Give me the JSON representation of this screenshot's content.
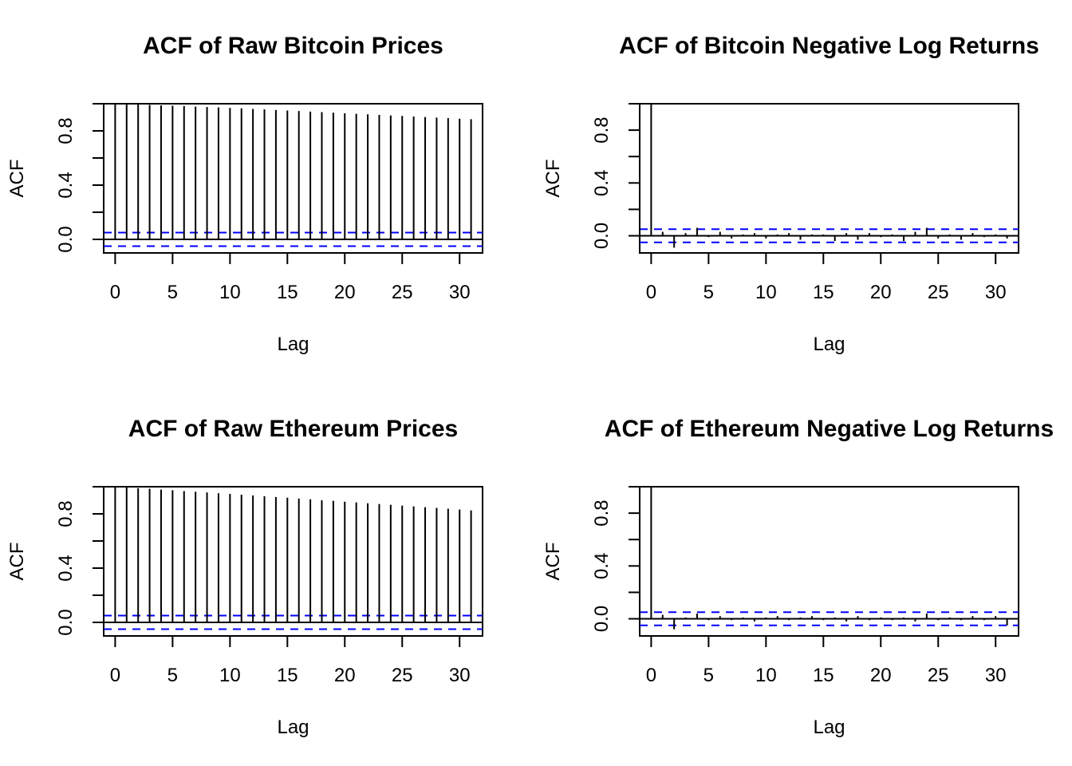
{
  "chart_data": [
    {
      "type": "bar",
      "title": "ACF of Raw Bitcoin Prices",
      "xlabel": "Lag",
      "ylabel": "ACF",
      "xlim": [
        -1,
        32
      ],
      "ylim": [
        -0.1,
        1.0
      ],
      "xticks": [
        "0",
        "5",
        "10",
        "15",
        "20",
        "25",
        "30"
      ],
      "yticks": [
        "0.0",
        "0.4",
        "0.8"
      ],
      "ci": 0.05,
      "grid": false,
      "colors": {
        "bars": "#000000",
        "ci": "#0000ff"
      },
      "x": [
        0,
        1,
        2,
        3,
        4,
        5,
        6,
        7,
        8,
        9,
        10,
        11,
        12,
        13,
        14,
        15,
        16,
        17,
        18,
        19,
        20,
        21,
        22,
        23,
        24,
        25,
        26,
        27,
        28,
        29,
        30,
        31
      ],
      "values": [
        1.0,
        0.997,
        0.994,
        0.991,
        0.988,
        0.985,
        0.982,
        0.979,
        0.976,
        0.973,
        0.969,
        0.966,
        0.962,
        0.958,
        0.954,
        0.95,
        0.946,
        0.942,
        0.938,
        0.934,
        0.93,
        0.926,
        0.922,
        0.918,
        0.914,
        0.91,
        0.906,
        0.902,
        0.898,
        0.894,
        0.89,
        0.886
      ]
    },
    {
      "type": "bar",
      "title": "ACF of Bitcoin Negative Log Returns",
      "xlabel": "Lag",
      "ylabel": "ACF",
      "xlim": [
        -1,
        32
      ],
      "ylim": [
        -0.13,
        1.0
      ],
      "xticks": [
        "0",
        "5",
        "10",
        "15",
        "20",
        "25",
        "30"
      ],
      "yticks": [
        "0.0",
        "0.4",
        "0.8"
      ],
      "ci": 0.05,
      "grid": false,
      "colors": {
        "bars": "#000000",
        "ci": "#0000ff"
      },
      "x": [
        0,
        1,
        2,
        3,
        4,
        5,
        6,
        7,
        8,
        9,
        10,
        11,
        12,
        13,
        14,
        15,
        16,
        17,
        18,
        19,
        20,
        21,
        22,
        23,
        24,
        25,
        26,
        27,
        28,
        29,
        30,
        31
      ],
      "values": [
        1.0,
        0.03,
        -0.09,
        0.02,
        0.06,
        -0.01,
        0.03,
        -0.02,
        0.01,
        0.02,
        -0.02,
        0.01,
        0.02,
        -0.03,
        0.01,
        0.01,
        -0.04,
        0.02,
        -0.03,
        0.02,
        -0.01,
        0.01,
        -0.04,
        0.03,
        0.06,
        -0.02,
        0.01,
        -0.03,
        0.02,
        -0.01,
        0.01,
        -0.02
      ]
    },
    {
      "type": "bar",
      "title": "ACF of Raw Ethereum Prices",
      "xlabel": "Lag",
      "ylabel": "ACF",
      "xlim": [
        -1,
        32
      ],
      "ylim": [
        -0.1,
        1.0
      ],
      "xticks": [
        "0",
        "5",
        "10",
        "15",
        "20",
        "25",
        "30"
      ],
      "yticks": [
        "0.0",
        "0.4",
        "0.8"
      ],
      "ci": 0.05,
      "grid": false,
      "colors": {
        "bars": "#000000",
        "ci": "#0000ff"
      },
      "x": [
        0,
        1,
        2,
        3,
        4,
        5,
        6,
        7,
        8,
        9,
        10,
        11,
        12,
        13,
        14,
        15,
        16,
        17,
        18,
        19,
        20,
        21,
        22,
        23,
        24,
        25,
        26,
        27,
        28,
        29,
        30,
        31
      ],
      "values": [
        1.0,
        0.995,
        0.99,
        0.985,
        0.979,
        0.974,
        0.968,
        0.963,
        0.958,
        0.952,
        0.947,
        0.941,
        0.936,
        0.93,
        0.924,
        0.919,
        0.913,
        0.907,
        0.901,
        0.896,
        0.89,
        0.884,
        0.878,
        0.873,
        0.867,
        0.861,
        0.855,
        0.849,
        0.844,
        0.838,
        0.832,
        0.826
      ]
    },
    {
      "type": "bar",
      "title": "ACF of Ethereum Negative Log Returns",
      "xlabel": "Lag",
      "ylabel": "ACF",
      "xlim": [
        -1,
        32
      ],
      "ylim": [
        -0.13,
        1.0
      ],
      "xticks": [
        "0",
        "5",
        "10",
        "15",
        "20",
        "25",
        "30"
      ],
      "yticks": [
        "0.0",
        "0.4",
        "0.8"
      ],
      "ci": 0.05,
      "grid": false,
      "colors": {
        "bars": "#000000",
        "ci": "#0000ff"
      },
      "x": [
        0,
        1,
        2,
        3,
        4,
        5,
        6,
        7,
        8,
        9,
        10,
        11,
        12,
        13,
        14,
        15,
        16,
        17,
        18,
        19,
        20,
        21,
        22,
        23,
        24,
        25,
        26,
        27,
        28,
        29,
        30,
        31
      ],
      "values": [
        1.0,
        0.03,
        -0.08,
        0.01,
        0.04,
        -0.01,
        0.02,
        -0.01,
        0.01,
        -0.02,
        0.01,
        0.02,
        -0.01,
        0.01,
        0.02,
        -0.01,
        0.01,
        -0.02,
        0.02,
        -0.01,
        0.01,
        -0.01,
        0.01,
        -0.02,
        0.04,
        -0.01,
        0.01,
        -0.01,
        0.02,
        -0.01,
        0.02,
        -0.05
      ]
    }
  ]
}
